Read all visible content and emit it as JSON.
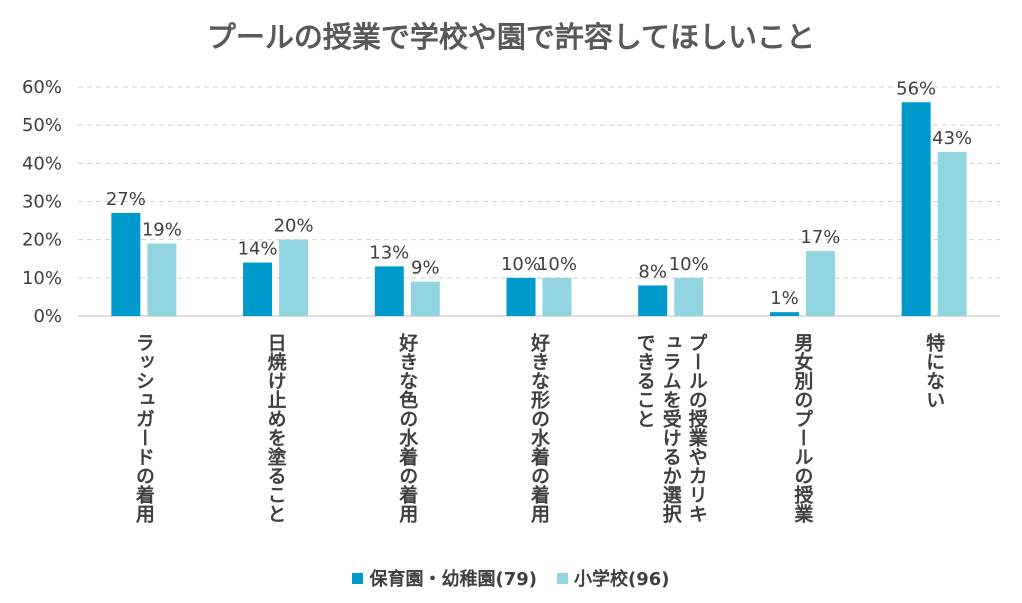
{
  "chart_data": {
    "type": "bar",
    "title": "プールの授業で学校や園で許容してほしいこと",
    "categories": [
      "ラッシュガードの着用",
      "日焼け止めを塗ること",
      "好きな色の水着の着用",
      "好きな形の水着の着用",
      "プールの授業やカリキュラムを受けるか選択できること",
      "男女別のプールの授業",
      "特にない"
    ],
    "series": [
      {
        "name": "保育園・幼稚園(79)",
        "color": "#0099CC",
        "values": [
          27,
          14,
          13,
          10,
          8,
          1,
          56
        ]
      },
      {
        "name": "小学校(96)",
        "color": "#92D5E0",
        "values": [
          19,
          20,
          9,
          10,
          10,
          17,
          43
        ]
      }
    ],
    "ylim": [
      0,
      60
    ],
    "yticks": [
      "0%",
      "10%",
      "20%",
      "30%",
      "40%",
      "50%",
      "60%"
    ],
    "ytick_values": [
      0,
      10,
      20,
      30,
      40,
      50,
      60
    ],
    "value_suffix": "%",
    "grid": true,
    "legend": "bottom"
  }
}
